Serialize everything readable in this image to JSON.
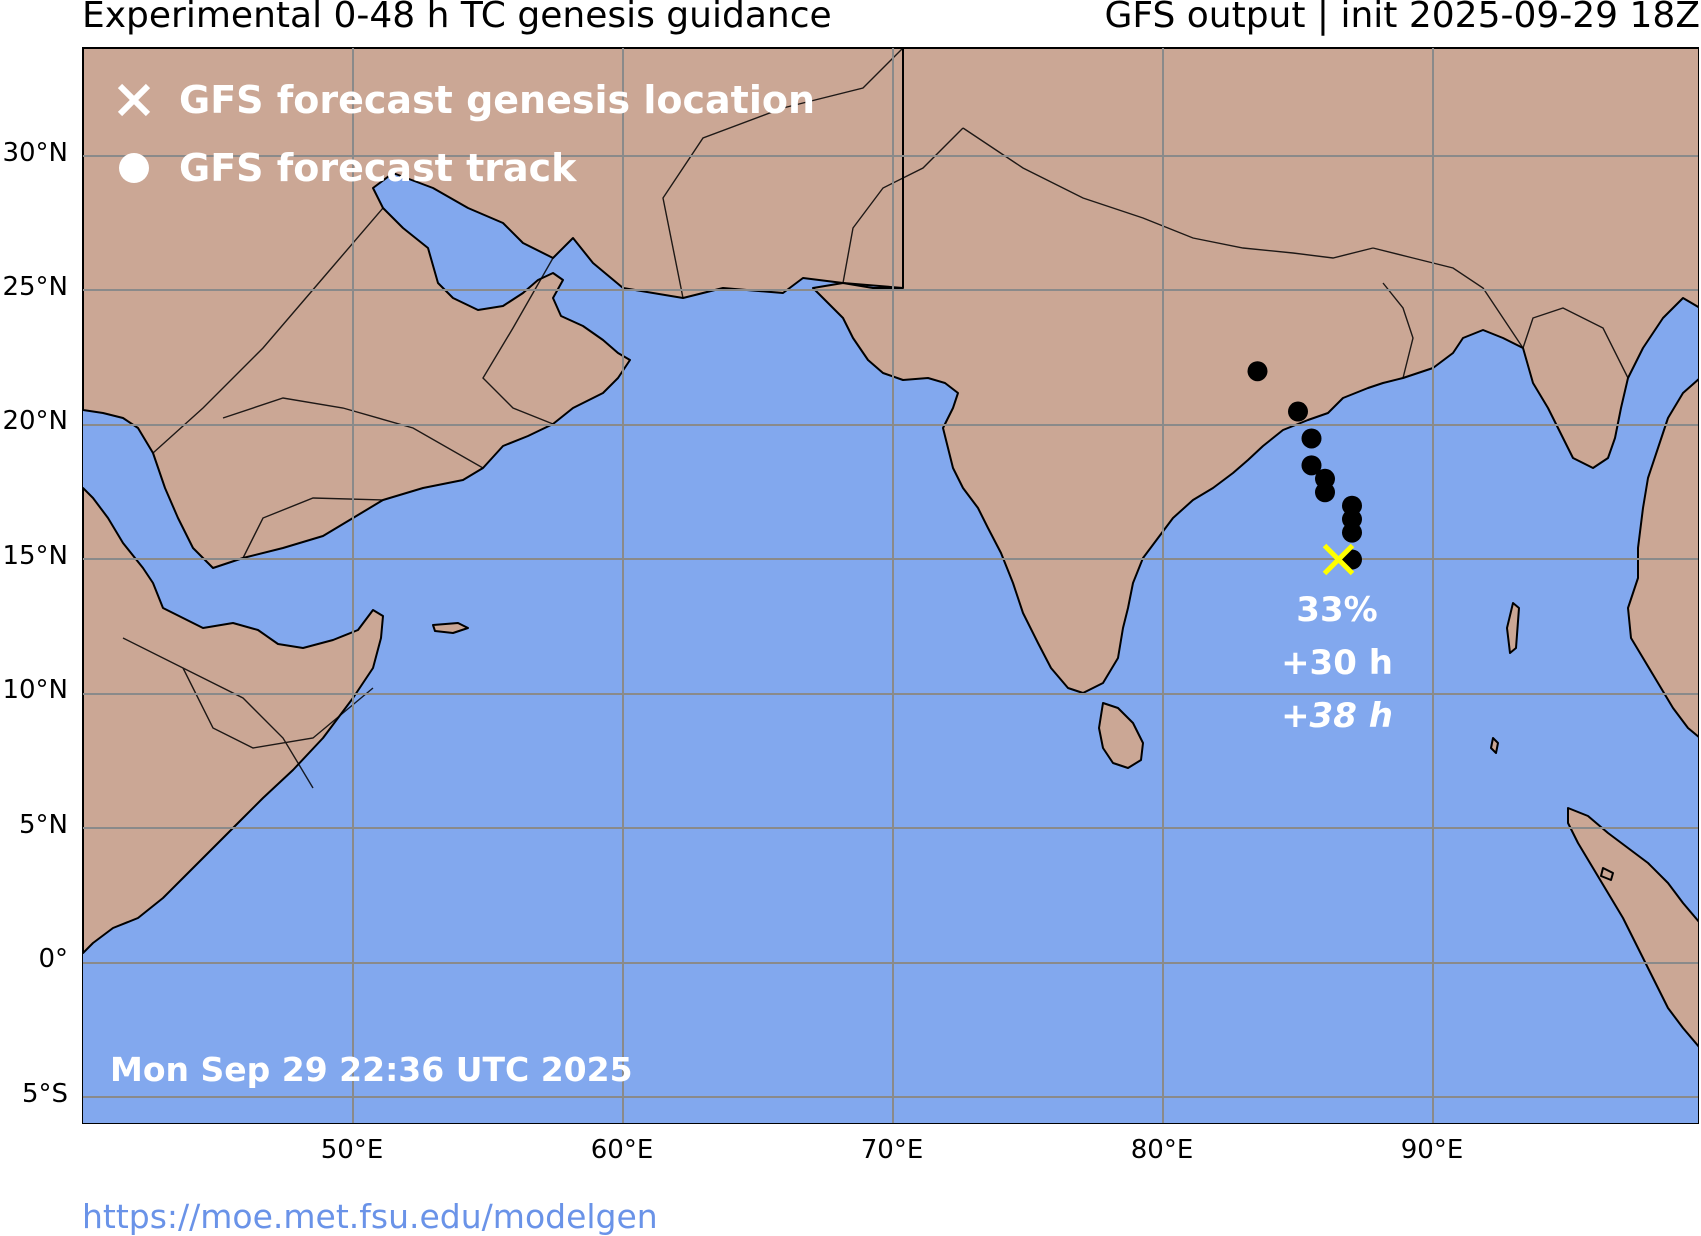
{
  "header": {
    "title_left": "Experimental 0-48 h TC genesis guidance",
    "title_right": "GFS output | init 2025-09-29 18Z"
  },
  "map": {
    "colors": {
      "land": "#cba795",
      "ocean": "#82a8ee",
      "borders": "#000000",
      "gridlines": "#8a8a8a",
      "track_points": "#000000",
      "genesis_marker": "#ffff00",
      "legend_text": "#ffffff",
      "url_text": "#6a93e8"
    },
    "lat_labels": [
      "30°N",
      "25°N",
      "20°N",
      "15°N",
      "10°N",
      "5°N",
      "0°",
      "5°S"
    ],
    "lon_labels": [
      "50°E",
      "60°E",
      "70°E",
      "80°E",
      "90°E"
    ],
    "legend": {
      "genesis_label": "GFS forecast genesis location",
      "genesis_icon": "x-mark-icon",
      "track_label": "GFS forecast track",
      "track_icon": "filled-circle-icon"
    },
    "genesis": {
      "lon": 86.5,
      "lat": 15.0,
      "probability": "33%",
      "genesis_time": "+30 h",
      "track_time": "+38 h"
    },
    "track_points": [
      {
        "lon": 83.5,
        "lat": 22.0
      },
      {
        "lon": 85.0,
        "lat": 20.5
      },
      {
        "lon": 85.5,
        "lat": 19.5
      },
      {
        "lon": 85.5,
        "lat": 18.5
      },
      {
        "lon": 86.0,
        "lat": 18.0
      },
      {
        "lon": 86.0,
        "lat": 17.5
      },
      {
        "lon": 87.0,
        "lat": 17.0
      },
      {
        "lon": 87.0,
        "lat": 16.5
      },
      {
        "lon": 87.0,
        "lat": 16.0
      },
      {
        "lon": 87.0,
        "lat": 15.0
      }
    ],
    "run_time": "Mon Sep 29 22:36 UTC 2025"
  },
  "footer": {
    "source_url": "https://moe.met.fsu.edu/modelgen"
  }
}
